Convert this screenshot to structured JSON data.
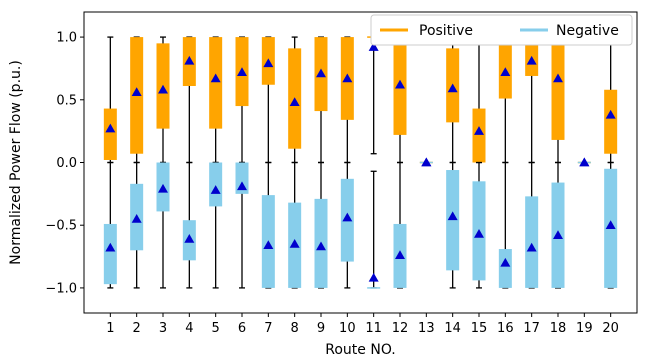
{
  "chart_data": {
    "type": "boxplot",
    "xlabel": "Route NO.",
    "ylabel": "Normalized Power Flow (p.u.)",
    "ylim": [
      -1.2,
      1.2
    ],
    "yticks": [
      -1.0,
      -0.5,
      0.0,
      0.5,
      1.0
    ],
    "ytick_labels": [
      "−1.0",
      "−0.5",
      "0.0",
      "0.5",
      "1.0"
    ],
    "categories": [
      "1",
      "2",
      "3",
      "4",
      "5",
      "6",
      "7",
      "8",
      "9",
      "10",
      "11",
      "12",
      "13",
      "14",
      "15",
      "16",
      "17",
      "18",
      "19",
      "20"
    ],
    "legend": {
      "position": "top-right",
      "entries": [
        {
          "name": "Positive",
          "color": "#FFA500"
        },
        {
          "name": "Negative",
          "color": "#87CEEB"
        }
      ]
    },
    "mean_marker_color": "#0000CD",
    "series": [
      {
        "name": "Positive",
        "color": "#FFA500",
        "boxes": [
          {
            "route": 1,
            "whislo": 0.0,
            "q1": 0.02,
            "q3": 0.43,
            "whishi": 1.0,
            "mean": 0.27
          },
          {
            "route": 2,
            "whislo": 0.0,
            "q1": 0.07,
            "q3": 1.0,
            "whishi": 1.0,
            "mean": 0.56
          },
          {
            "route": 3,
            "whislo": 0.0,
            "q1": 0.27,
            "q3": 0.95,
            "whishi": 1.0,
            "mean": 0.58
          },
          {
            "route": 4,
            "whislo": 0.0,
            "q1": 0.61,
            "q3": 1.0,
            "whishi": 1.0,
            "mean": 0.81
          },
          {
            "route": 5,
            "whislo": 0.0,
            "q1": 0.27,
            "q3": 1.0,
            "whishi": 1.0,
            "mean": 0.67
          },
          {
            "route": 6,
            "whislo": 0.0,
            "q1": 0.45,
            "q3": 1.0,
            "whishi": 1.0,
            "mean": 0.72
          },
          {
            "route": 7,
            "whislo": 0.0,
            "q1": 0.62,
            "q3": 1.0,
            "whishi": 1.0,
            "mean": 0.79
          },
          {
            "route": 8,
            "whislo": 0.0,
            "q1": 0.11,
            "q3": 0.91,
            "whishi": 1.0,
            "mean": 0.48
          },
          {
            "route": 9,
            "whislo": 0.0,
            "q1": 0.41,
            "q3": 1.0,
            "whishi": 1.0,
            "mean": 0.71
          },
          {
            "route": 10,
            "whislo": 0.0,
            "q1": 0.34,
            "q3": 1.0,
            "whishi": 1.0,
            "mean": 0.67
          },
          {
            "route": 11,
            "whislo": 0.07,
            "q1": 1.0,
            "q3": 1.0,
            "whishi": 1.0,
            "mean": 0.92
          },
          {
            "route": 12,
            "whislo": 0.0,
            "q1": 0.22,
            "q3": 1.0,
            "whishi": 1.0,
            "mean": 0.62
          },
          {
            "route": 13,
            "whislo": 0.0,
            "q1": 0.0,
            "q3": 0.0,
            "whishi": 0.0,
            "mean": 0.0
          },
          {
            "route": 14,
            "whislo": 0.0,
            "q1": 0.32,
            "q3": 0.91,
            "whishi": 1.0,
            "mean": 0.59
          },
          {
            "route": 15,
            "whislo": 0.0,
            "q1": 0.0,
            "q3": 0.43,
            "whishi": 1.0,
            "mean": 0.25
          },
          {
            "route": 16,
            "whislo": 0.0,
            "q1": 0.51,
            "q3": 1.0,
            "whishi": 1.0,
            "mean": 0.72
          },
          {
            "route": 17,
            "whislo": 0.0,
            "q1": 0.69,
            "q3": 1.0,
            "whishi": 1.0,
            "mean": 0.81
          },
          {
            "route": 18,
            "whislo": 0.0,
            "q1": 0.18,
            "q3": 1.0,
            "whishi": 1.0,
            "mean": 0.67
          },
          {
            "route": 19,
            "whislo": 0.0,
            "q1": 0.0,
            "q3": 0.0,
            "whishi": 0.0,
            "mean": 0.0
          },
          {
            "route": 20,
            "whislo": 0.0,
            "q1": 0.07,
            "q3": 0.58,
            "whishi": 1.0,
            "mean": 0.38
          }
        ]
      },
      {
        "name": "Negative",
        "color": "#87CEEB",
        "boxes": [
          {
            "route": 1,
            "whislo": -1.0,
            "q1": -0.97,
            "q3": -0.49,
            "whishi": 0.0,
            "mean": -0.68
          },
          {
            "route": 2,
            "whislo": -1.0,
            "q1": -0.7,
            "q3": -0.17,
            "whishi": 0.0,
            "mean": -0.45
          },
          {
            "route": 3,
            "whislo": -1.0,
            "q1": -0.39,
            "q3": 0.0,
            "whishi": 0.0,
            "mean": -0.21
          },
          {
            "route": 4,
            "whislo": -1.0,
            "q1": -0.78,
            "q3": -0.46,
            "whishi": 0.0,
            "mean": -0.61
          },
          {
            "route": 5,
            "whislo": -1.0,
            "q1": -0.35,
            "q3": 0.0,
            "whishi": 0.0,
            "mean": -0.22
          },
          {
            "route": 6,
            "whislo": -1.0,
            "q1": -0.25,
            "q3": 0.0,
            "whishi": 0.0,
            "mean": -0.19
          },
          {
            "route": 7,
            "whislo": -1.0,
            "q1": -1.0,
            "q3": -0.26,
            "whishi": 0.0,
            "mean": -0.66
          },
          {
            "route": 8,
            "whislo": -1.0,
            "q1": -1.0,
            "q3": -0.32,
            "whishi": 0.0,
            "mean": -0.65
          },
          {
            "route": 9,
            "whislo": -1.0,
            "q1": -1.0,
            "q3": -0.29,
            "whishi": 0.0,
            "mean": -0.67
          },
          {
            "route": 10,
            "whislo": -1.0,
            "q1": -0.79,
            "q3": -0.13,
            "whishi": 0.0,
            "mean": -0.44
          },
          {
            "route": 11,
            "whislo": -1.0,
            "q1": -1.0,
            "q3": -1.0,
            "whishi": -0.07,
            "mean": -0.92
          },
          {
            "route": 12,
            "whislo": -1.0,
            "q1": -1.0,
            "q3": -0.49,
            "whishi": 0.0,
            "mean": -0.74
          },
          {
            "route": 13,
            "whislo": 0.0,
            "q1": 0.0,
            "q3": 0.0,
            "whishi": 0.0,
            "mean": 0.0
          },
          {
            "route": 14,
            "whislo": -1.0,
            "q1": -0.86,
            "q3": -0.06,
            "whishi": 0.0,
            "mean": -0.43
          },
          {
            "route": 15,
            "whislo": -1.0,
            "q1": -0.94,
            "q3": -0.15,
            "whishi": 0.0,
            "mean": -0.57
          },
          {
            "route": 16,
            "whislo": -1.0,
            "q1": -1.0,
            "q3": -0.69,
            "whishi": 0.0,
            "mean": -0.8
          },
          {
            "route": 17,
            "whislo": -1.0,
            "q1": -1.0,
            "q3": -0.27,
            "whishi": 0.0,
            "mean": -0.68
          },
          {
            "route": 18,
            "whislo": -1.0,
            "q1": -1.0,
            "q3": -0.16,
            "whishi": 0.0,
            "mean": -0.58
          },
          {
            "route": 19,
            "whislo": 0.0,
            "q1": 0.0,
            "q3": 0.0,
            "whishi": 0.0,
            "mean": 0.0
          },
          {
            "route": 20,
            "whislo": -1.0,
            "q1": -1.0,
            "q3": -0.05,
            "whishi": 0.0,
            "mean": -0.5
          }
        ]
      }
    ]
  }
}
